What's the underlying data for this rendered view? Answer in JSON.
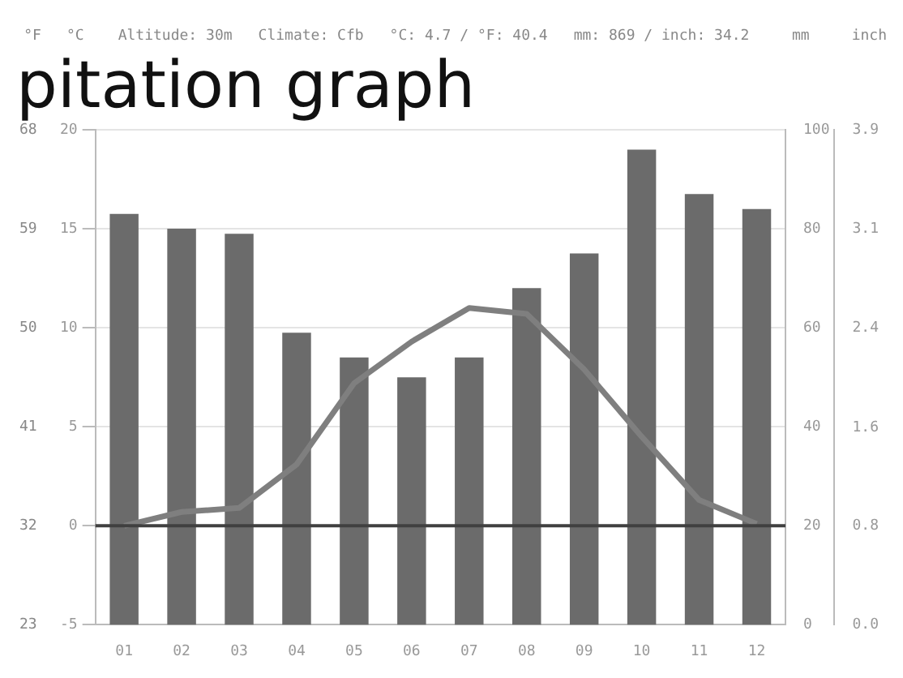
{
  "chart_data": {
    "type": "bar",
    "title": "pitation graph",
    "categories": [
      "01",
      "02",
      "03",
      "04",
      "05",
      "06",
      "07",
      "08",
      "09",
      "10",
      "11",
      "12"
    ],
    "series": [
      {
        "axis": "y2",
        "color": "#6b6b6b",
        "values": [
          83,
          80,
          79,
          59,
          54,
          50,
          54,
          68,
          75,
          96,
          87,
          84
        ]
      },
      {
        "type": "line",
        "axis": "y",
        "color": "#7f7f7f",
        "values": [
          0.0,
          0.7,
          0.9,
          3.1,
          7.2,
          9.3,
          11.0,
          10.7,
          7.9,
          4.5,
          1.3,
          0.1
        ]
      }
    ],
    "ylim": [
      -5,
      20
    ],
    "yticks": [
      -5,
      0,
      5,
      10,
      15,
      20
    ],
    "y2lim": [
      0,
      100
    ],
    "y2ticks": [
      0,
      20,
      40,
      60,
      80,
      100
    ],
    "y3lim": [
      0,
      3.94
    ],
    "y3ticks": [
      {
        "value": 0,
        "label": "0.0"
      },
      {
        "value": 0.79,
        "label": "0.8"
      },
      {
        "value": 1.57,
        "label": "1.6"
      },
      {
        "value": 2.36,
        "label": "2.4"
      },
      {
        "value": 3.15,
        "label": "3.1"
      },
      {
        "value": 3.94,
        "label": "3.9"
      }
    ],
    "ref_lines": [
      {
        "axis": "y",
        "value": 0,
        "color": "#404040"
      }
    ],
    "grid": "y",
    "legend": false,
    "marker": "none",
    "annotations": [
      "°F",
      "°C",
      "Altitude: 30m",
      "Climate: Cfb",
      "°C: 4.7 / °F: 40.4",
      "mm: 869 / inch: 34.2",
      "mm",
      "inch",
      "68",
      "59",
      "50",
      "41",
      "32",
      "23"
    ]
  }
}
